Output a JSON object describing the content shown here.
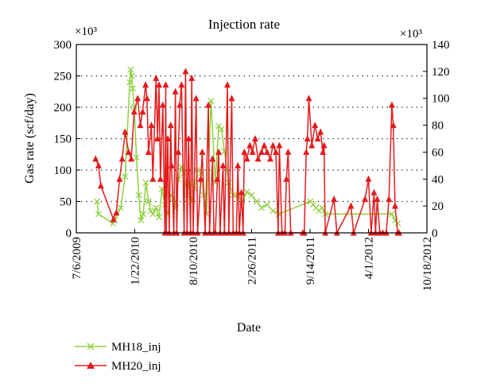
{
  "chart_data": {
    "type": "line",
    "title": "Injection rate",
    "xlabel": "Date",
    "ylabel": "Gas rate (scf/day)",
    "y_multiplier_label_left": "×10³",
    "y_multiplier_label_right": "×10³",
    "x_tick_labels": [
      "7/6/2009",
      "1/22/2010",
      "8/10/2010",
      "2/26/2011",
      "9/14/2011",
      "4/1/2012",
      "10/18/2012"
    ],
    "xlim": [
      "2009-07-06",
      "2012-10-18"
    ],
    "ylim_left": [
      0,
      300
    ],
    "y_ticks_left": [
      0,
      50,
      100,
      150,
      200,
      250,
      300
    ],
    "ylim_right": [
      0,
      140
    ],
    "y_ticks_right": [
      0,
      20,
      40,
      60,
      80,
      100,
      120,
      140
    ],
    "grid": "horizontal-dotted",
    "legend_position": "bottom-left",
    "colors": {
      "MH18_inj": "#8fd13f",
      "MH20_inj": "#e31a1c"
    },
    "series": [
      {
        "name": "MH18_inj",
        "axis": "left",
        "marker": "x",
        "x": [
          "2009-09-15",
          "2009-09-20",
          "2009-11-08",
          "2009-11-15",
          "2009-12-05",
          "2009-12-20",
          "2010-01-05",
          "2010-01-08",
          "2010-01-12",
          "2010-01-15",
          "2010-01-20",
          "2010-01-28",
          "2010-02-05",
          "2010-02-12",
          "2010-02-20",
          "2010-03-01",
          "2010-03-10",
          "2010-03-18",
          "2010-03-25",
          "2010-04-05",
          "2010-04-15",
          "2010-04-25",
          "2010-05-05",
          "2010-05-15",
          "2010-05-25",
          "2010-06-05",
          "2010-06-12",
          "2010-06-20",
          "2010-07-01",
          "2010-07-10",
          "2010-07-20",
          "2010-07-28",
          "2010-08-05",
          "2010-08-15",
          "2010-08-25",
          "2010-09-05",
          "2010-09-15",
          "2010-09-25",
          "2010-10-10",
          "2010-10-25",
          "2010-11-05",
          "2010-11-15",
          "2010-11-25",
          "2010-12-10",
          "2010-12-25",
          "2011-01-10",
          "2011-01-25",
          "2011-02-10",
          "2011-02-26",
          "2011-03-15",
          "2011-04-01",
          "2011-04-20",
          "2011-05-10",
          "2011-05-30",
          "2011-09-15",
          "2011-09-25",
          "2011-10-05",
          "2011-10-15",
          "2011-10-25",
          "2011-11-05",
          "2012-06-20",
          "2012-07-01",
          "2012-07-10"
        ],
        "values": [
          50,
          30,
          15,
          20,
          40,
          90,
          240,
          260,
          250,
          230,
          200,
          120,
          60,
          20,
          30,
          80,
          50,
          35,
          30,
          40,
          25,
          70,
          45,
          30,
          60,
          55,
          40,
          85,
          105,
          95,
          60,
          80,
          50,
          70,
          100,
          95,
          60,
          30,
          210,
          80,
          170,
          165,
          130,
          80,
          60,
          60,
          50,
          65,
          60,
          50,
          40,
          45,
          35,
          30,
          50,
          45,
          40,
          35,
          40,
          30,
          30,
          20,
          15
        ]
      },
      {
        "name": "MH20_inj",
        "axis": "right",
        "marker": "triangle",
        "x": [
          "2009-09-10",
          "2009-09-20",
          "2009-09-28",
          "2009-11-10",
          "2009-11-20",
          "2009-12-01",
          "2009-12-10",
          "2009-12-20",
          "2010-01-01",
          "2010-01-10",
          "2010-01-20",
          "2010-02-01",
          "2010-02-10",
          "2010-02-18",
          "2010-02-28",
          "2010-03-05",
          "2010-03-10",
          "2010-03-20",
          "2010-03-25",
          "2010-04-05",
          "2010-04-10",
          "2010-04-15",
          "2010-04-20",
          "2010-04-28",
          "2010-05-05",
          "2010-05-08",
          "2010-05-10",
          "2010-05-15",
          "2010-05-20",
          "2010-05-25",
          "2010-05-28",
          "2010-06-05",
          "2010-06-10",
          "2010-06-15",
          "2010-06-20",
          "2010-06-25",
          "2010-07-01",
          "2010-07-10",
          "2010-07-15",
          "2010-07-20",
          "2010-07-25",
          "2010-08-01",
          "2010-08-05",
          "2010-08-10",
          "2010-08-20",
          "2010-08-25",
          "2010-09-05",
          "2010-09-10",
          "2010-09-20",
          "2010-10-01",
          "2010-10-05",
          "2010-10-15",
          "2010-10-20",
          "2010-10-25",
          "2010-11-01",
          "2010-11-05",
          "2010-11-10",
          "2010-11-20",
          "2010-11-25",
          "2010-12-05",
          "2010-12-10",
          "2010-12-20",
          "2010-12-25",
          "2011-01-05",
          "2011-01-10",
          "2011-01-15",
          "2011-01-22",
          "2011-01-28",
          "2011-02-01",
          "2011-02-10",
          "2011-02-20",
          "2011-03-01",
          "2011-03-10",
          "2011-03-20",
          "2011-04-01",
          "2011-04-10",
          "2011-04-20",
          "2011-05-01",
          "2011-05-10",
          "2011-05-20",
          "2011-05-28",
          "2011-06-01",
          "2011-06-10",
          "2011-06-20",
          "2011-06-25",
          "2011-07-01",
          "2011-07-10",
          "2011-08-20",
          "2011-08-25",
          "2011-09-01",
          "2011-09-05",
          "2011-09-10",
          "2011-09-20",
          "2011-10-01",
          "2011-10-10",
          "2011-10-20",
          "2011-10-28",
          "2011-11-01",
          "2011-11-05",
          "2011-12-05",
          "2011-12-15",
          "2012-02-01",
          "2012-02-10",
          "2012-03-20",
          "2012-04-01",
          "2012-04-10",
          "2012-04-20",
          "2012-04-25",
          "2012-05-01",
          "2012-05-10",
          "2012-05-20",
          "2012-06-01",
          "2012-06-10",
          "2012-06-20",
          "2012-06-25",
          "2012-07-01",
          "2012-07-10",
          "2012-07-15"
        ],
        "values": [
          55,
          50,
          35,
          10,
          15,
          40,
          55,
          75,
          60,
          55,
          90,
          100,
          80,
          90,
          110,
          100,
          60,
          80,
          40,
          115,
          70,
          110,
          40,
          95,
          0,
          110,
          0,
          70,
          0,
          80,
          50,
          0,
          105,
          0,
          60,
          95,
          110,
          0,
          120,
          0,
          70,
          0,
          115,
          0,
          100,
          0,
          40,
          60,
          0,
          95,
          0,
          55,
          0,
          0,
          40,
          60,
          0,
          50,
          0,
          110,
          0,
          100,
          0,
          0,
          50,
          0,
          30,
          0,
          60,
          55,
          65,
          60,
          70,
          55,
          60,
          65,
          60,
          55,
          65,
          60,
          0,
          65,
          0,
          0,
          40,
          60,
          0,
          0,
          0,
          60,
          70,
          100,
          65,
          80,
          70,
          75,
          60,
          65,
          0,
          25,
          0,
          20,
          0,
          25,
          40,
          0,
          30,
          0,
          25,
          0,
          0,
          0,
          25,
          95,
          80,
          20,
          0,
          0
        ]
      }
    ]
  }
}
